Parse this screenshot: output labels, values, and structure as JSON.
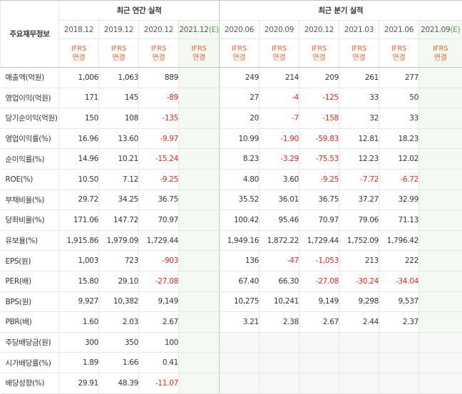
{
  "header": {
    "corner_label": "주요재무정보",
    "annual_title": "최근 연간 실적",
    "quarterly_title": "최근 분기 실적",
    "annual_periods": [
      "2018.12",
      "2019.12",
      "2020.12",
      "2021.12"
    ],
    "quarterly_periods": [
      "2020.06",
      "2020.09",
      "2020.12",
      "2021.03",
      "2021.06",
      "2021.09"
    ],
    "estimate_mark": "(E)",
    "ifrs_line1": "IFRS",
    "ifrs_line2": "연결"
  },
  "rows": [
    {
      "label": "매출액(억원)",
      "values": [
        "1,006",
        "1,063",
        "889",
        "",
        "249",
        "214",
        "209",
        "261",
        "277",
        ""
      ]
    },
    {
      "label": "영업이익(억원)",
      "values": [
        "171",
        "145",
        "-89",
        "",
        "27",
        "-4",
        "-125",
        "33",
        "50",
        ""
      ]
    },
    {
      "label": "당기순이익(억원)",
      "values": [
        "150",
        "108",
        "-135",
        "",
        "20",
        "-7",
        "-158",
        "32",
        "33",
        ""
      ]
    },
    {
      "label": "영업이익률(%)",
      "values": [
        "16.96",
        "13.60",
        "-9.97",
        "",
        "10.99",
        "-1.90",
        "-59.83",
        "12.81",
        "18.23",
        ""
      ]
    },
    {
      "label": "순이익률(%)",
      "values": [
        "14.96",
        "10.21",
        "-15.24",
        "",
        "8.23",
        "-3.29",
        "-75.53",
        "12.23",
        "12.02",
        ""
      ]
    },
    {
      "label": "ROE(%)",
      "values": [
        "10.50",
        "7.12",
        "-9.25",
        "",
        "4.80",
        "3.60",
        "-9.25",
        "-7.72",
        "-6.72",
        ""
      ]
    },
    {
      "label": "부채비율(%)",
      "values": [
        "29.72",
        "34.25",
        "36.75",
        "",
        "35.52",
        "36.01",
        "36.75",
        "37.27",
        "32.99",
        ""
      ]
    },
    {
      "label": "당좌비율(%)",
      "values": [
        "171.06",
        "147.72",
        "70.97",
        "",
        "100.42",
        "95.46",
        "70.97",
        "79.06",
        "71.13",
        ""
      ]
    },
    {
      "label": "유보율(%)",
      "values": [
        "1,915.86",
        "1,979.09",
        "1,729.44",
        "",
        "1,949.16",
        "1,872.22",
        "1,729.44",
        "1,752.09",
        "1,796.42",
        ""
      ]
    },
    {
      "label": "EPS(원)",
      "values": [
        "1,003",
        "723",
        "-903",
        "",
        "136",
        "-47",
        "-1,053",
        "213",
        "222",
        ""
      ]
    },
    {
      "label": "PER(배)",
      "values": [
        "15.80",
        "29.10",
        "-27.08",
        "",
        "67.40",
        "66.30",
        "-27.08",
        "-30.24",
        "-34.04",
        ""
      ]
    },
    {
      "label": "BPS(원)",
      "values": [
        "9,927",
        "10,382",
        "9,149",
        "",
        "10,275",
        "10,241",
        "9,149",
        "9,298",
        "9,537",
        ""
      ]
    },
    {
      "label": "PBR(배)",
      "values": [
        "1.60",
        "2.03",
        "2.67",
        "",
        "3.21",
        "2.38",
        "2.67",
        "2.44",
        "2.37",
        ""
      ]
    },
    {
      "label": "주당배당금(원)",
      "values": [
        "300",
        "350",
        "100",
        "",
        "",
        "",
        "",
        "",
        "",
        ""
      ]
    },
    {
      "label": "시가배당률(%)",
      "values": [
        "1.89",
        "1.66",
        "0.41",
        "",
        "",
        "",
        "",
        "",
        "",
        ""
      ]
    },
    {
      "label": "배당성향(%)",
      "values": [
        "29.91",
        "48.39",
        "-11.07",
        "",
        "",
        "",
        "",
        "",
        "",
        ""
      ]
    }
  ],
  "colors": {
    "negative": "#e0281f",
    "ifrs": "#e8652c",
    "estimate": "#5a9a5a"
  }
}
